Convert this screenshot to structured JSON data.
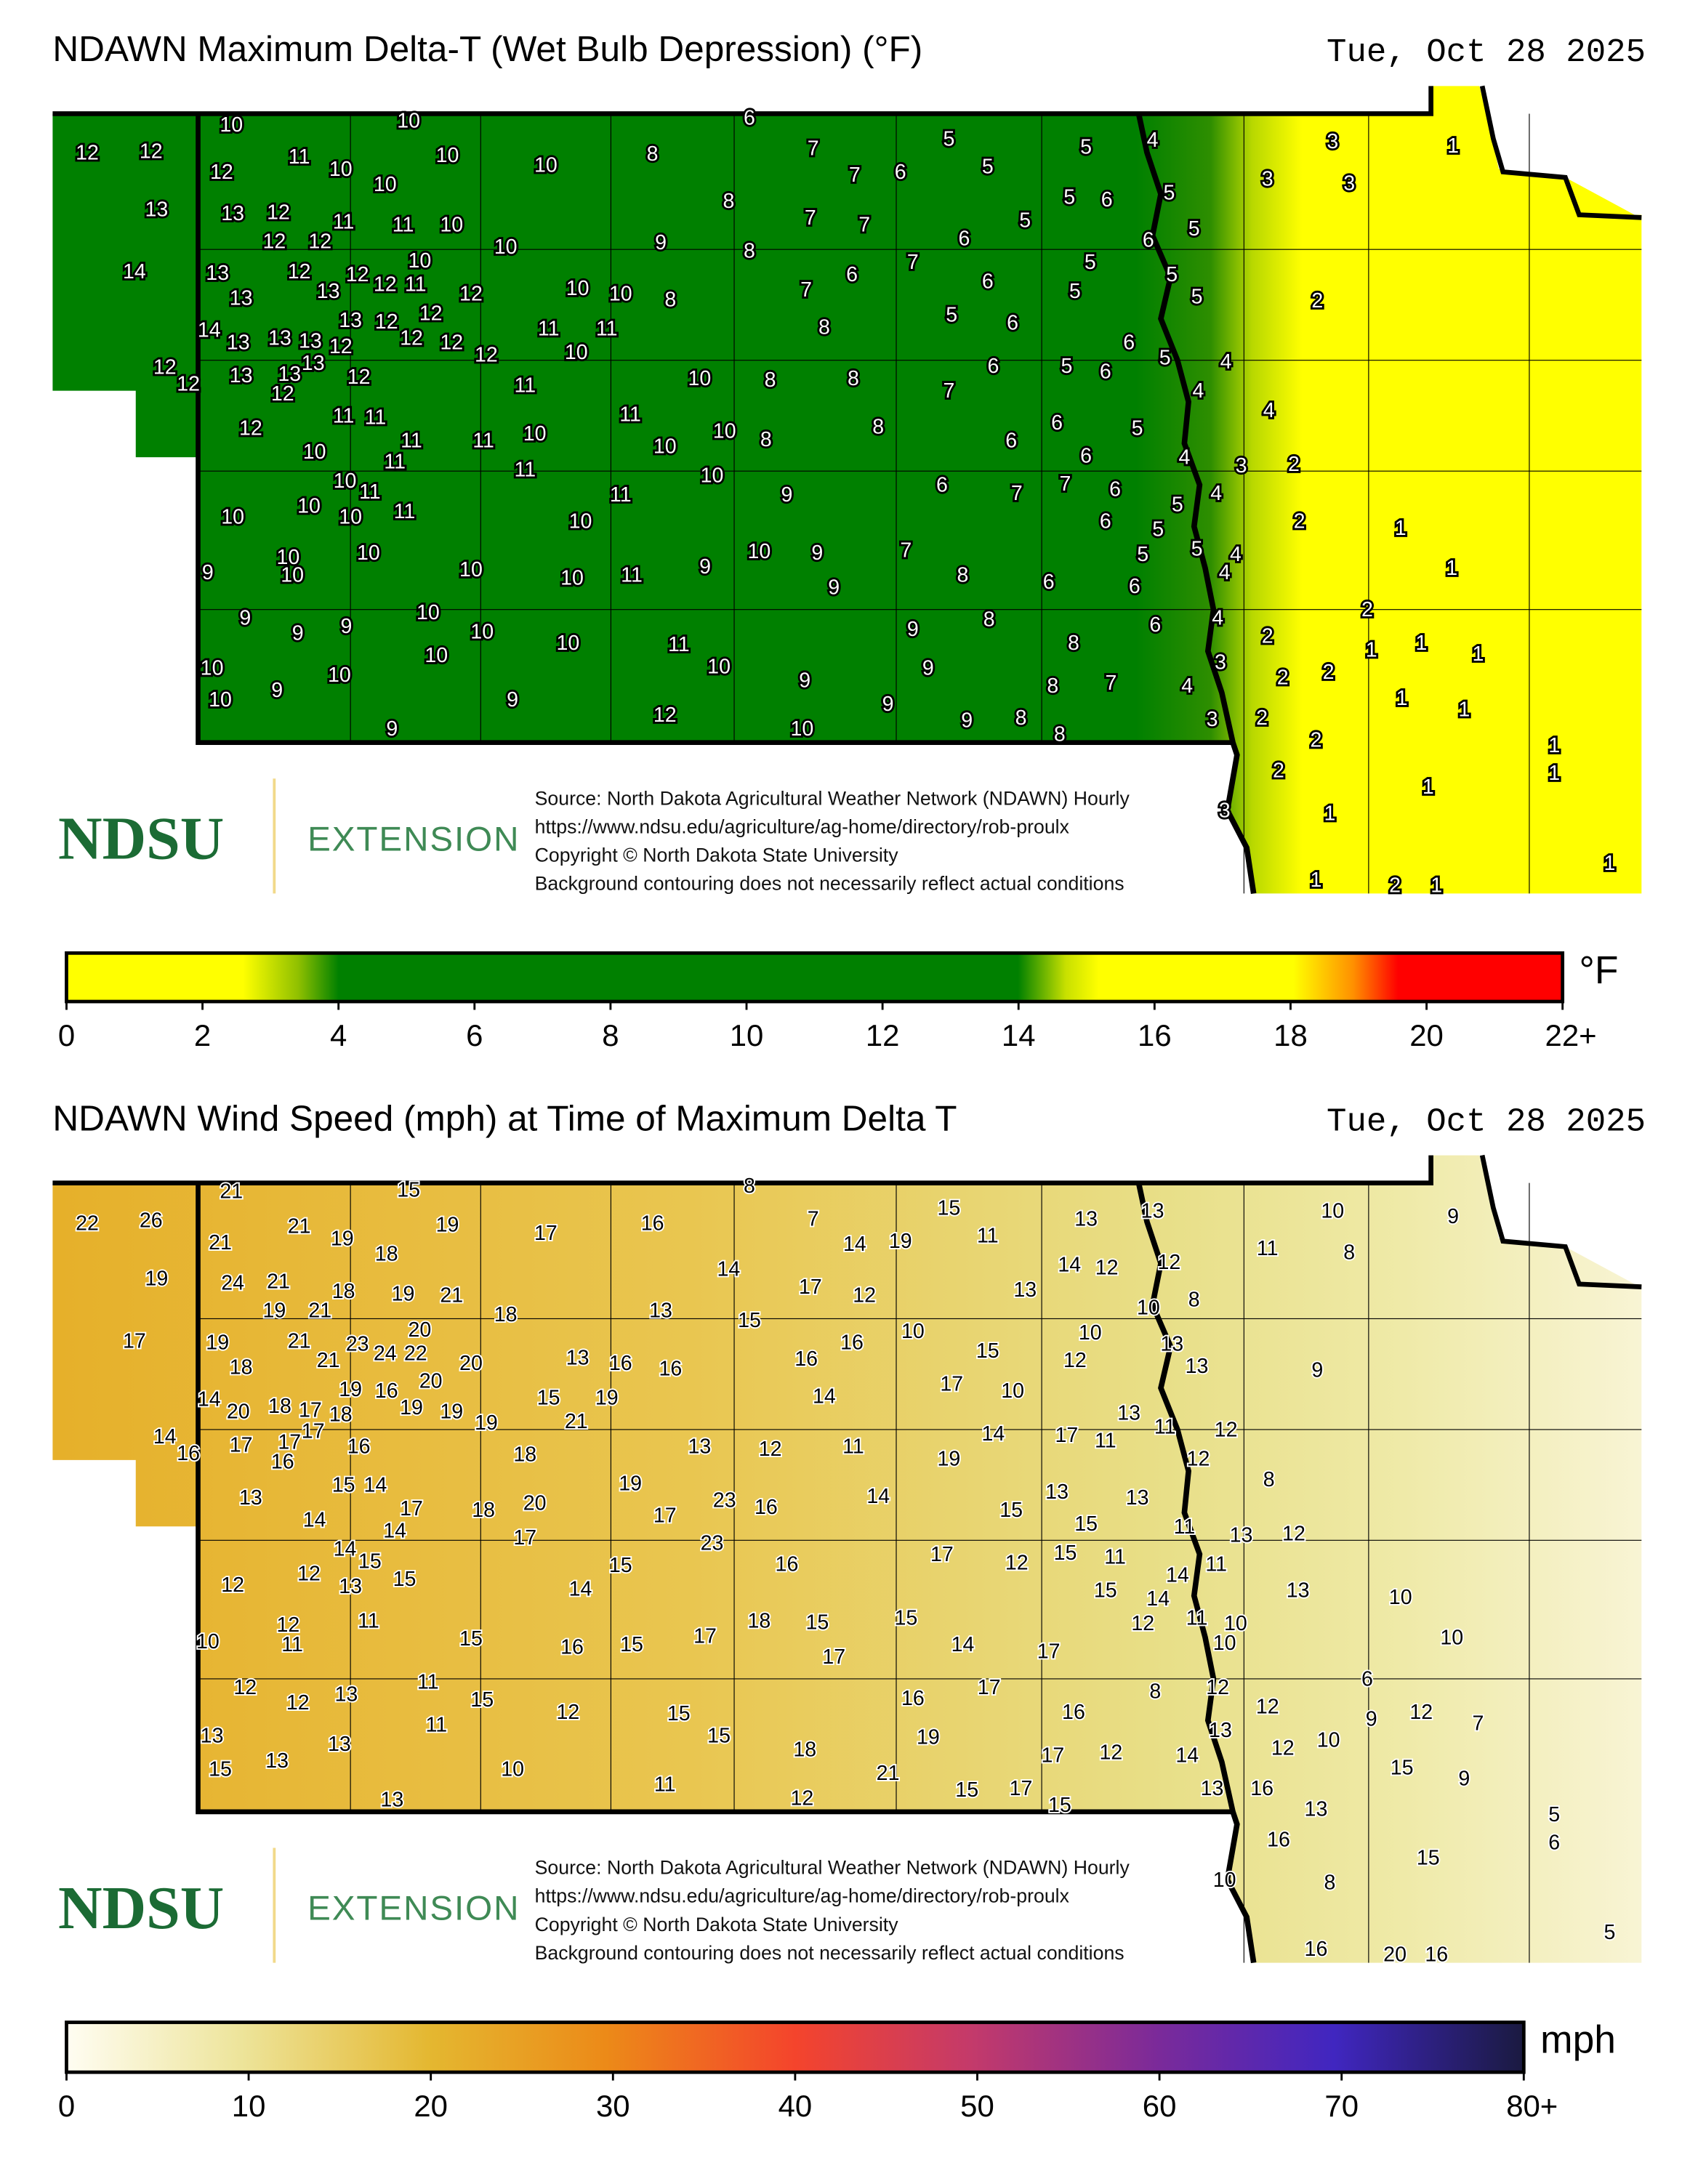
{
  "delta_t_map": {
    "title": "NDAWN Maximum Delta-T (Wet Bulb Depression) (°F)",
    "date": "Tue, Oct 28 2025",
    "colors": {
      "low": "#ffff00",
      "mid": "#008000",
      "high": "#ff0000"
    },
    "station_values": [
      12,
      12,
      10,
      10,
      6,
      11,
      10,
      12,
      10,
      10,
      10,
      8,
      7,
      7,
      6,
      5,
      5,
      5,
      4,
      3,
      1,
      3,
      3,
      13,
      13,
      12,
      11,
      11,
      10,
      8,
      7,
      7,
      5,
      5,
      6,
      5,
      5,
      6,
      10,
      9,
      8,
      12,
      12,
      14,
      13,
      10,
      12,
      12,
      12,
      11,
      13,
      13,
      12,
      12,
      10,
      10,
      8,
      7,
      6,
      7,
      6,
      6,
      5,
      5,
      5,
      5,
      2,
      14,
      13,
      13,
      13,
      12,
      13,
      12,
      12,
      12,
      12,
      11,
      11,
      10,
      8,
      5,
      6,
      6,
      5,
      4,
      12,
      12,
      13,
      13,
      13,
      12,
      12,
      11,
      10,
      8,
      8,
      7,
      6,
      5,
      6,
      4,
      4,
      12,
      11,
      11,
      11,
      11,
      11,
      10,
      11,
      10,
      10,
      8,
      8,
      6,
      6,
      6,
      5,
      4,
      3,
      2,
      10,
      11,
      10,
      11,
      10,
      9,
      6,
      7,
      7,
      6,
      5,
      4,
      10,
      10,
      10,
      11,
      11,
      10,
      6,
      5,
      2,
      1,
      9,
      10,
      10,
      10,
      10,
      10,
      11,
      9,
      10,
      9,
      9,
      7,
      8,
      6,
      6,
      5,
      5,
      4,
      4,
      1,
      9,
      9,
      9,
      10,
      10,
      10,
      10,
      8,
      9,
      8,
      6,
      4,
      2,
      2,
      1,
      1,
      1,
      10,
      10,
      9,
      10,
      9,
      9,
      11,
      10,
      12,
      9,
      10,
      9,
      9,
      9,
      8,
      8,
      7,
      8,
      4,
      3,
      3,
      2,
      2,
      2,
      1,
      1,
      2,
      2,
      1,
      1,
      1,
      3,
      1,
      1,
      2,
      1,
      1
    ],
    "source_lines": [
      "Source: North Dakota Agricultural Weather Network (NDAWN) Hourly",
      "https://www.ndsu.edu/agriculture/ag-home/directory/rob-proulx",
      "Copyright © North Dakota State University",
      "Background contouring does not necessarily reflect actual conditions"
    ],
    "logo": {
      "name": "NDSU",
      "sub": "EXTENSION"
    },
    "legend": {
      "unit": "°F",
      "ticks": [
        "0",
        "2",
        "4",
        "6",
        "8",
        "10",
        "12",
        "14",
        "16",
        "18",
        "20",
        "22+"
      ]
    }
  },
  "wind_map": {
    "title": "NDAWN Wind Speed (mph) at Time of Maximum Delta T",
    "date": "Tue, Oct 28 2025",
    "colors": {
      "low": "#fffdf0",
      "mid": "#e3b52c",
      "high": "#1a1a40"
    },
    "station_values": [
      21,
      15,
      8,
      22,
      26,
      21,
      21,
      19,
      18,
      19,
      17,
      16,
      7,
      14,
      19,
      15,
      11,
      13,
      13,
      10,
      9,
      11,
      8,
      19,
      24,
      21,
      18,
      19,
      21,
      14,
      17,
      12,
      13,
      14,
      12,
      12,
      8,
      10,
      18,
      13,
      15,
      19,
      21,
      17,
      19,
      20,
      21,
      23,
      24,
      22,
      18,
      21,
      20,
      20,
      13,
      16,
      16,
      16,
      16,
      10,
      15,
      10,
      12,
      13,
      13,
      9,
      14,
      20,
      18,
      17,
      18,
      19,
      16,
      19,
      19,
      19,
      15,
      19,
      21,
      14,
      17,
      10,
      13,
      11,
      12,
      14,
      16,
      17,
      17,
      17,
      16,
      16,
      18,
      13,
      12,
      11,
      19,
      14,
      17,
      11,
      12,
      8,
      13,
      15,
      14,
      17,
      14,
      18,
      20,
      19,
      17,
      23,
      16,
      14,
      15,
      13,
      15,
      13,
      11,
      13,
      12,
      14,
      17,
      14,
      15,
      23,
      16,
      17,
      12,
      15,
      11,
      14,
      11,
      12,
      12,
      13,
      15,
      14,
      15,
      15,
      14,
      13,
      10,
      10,
      12,
      11,
      11,
      15,
      16,
      15,
      17,
      18,
      15,
      17,
      15,
      14,
      17,
      12,
      11,
      10,
      10,
      10,
      12,
      12,
      13,
      11,
      11,
      15,
      12,
      16,
      17,
      16,
      8,
      12,
      6,
      12,
      9,
      12,
      7,
      13,
      15,
      13,
      13,
      13,
      10,
      15,
      15,
      11,
      18,
      12,
      19,
      21,
      15,
      17,
      17,
      12,
      15,
      14,
      13,
      13,
      16,
      12,
      10,
      15,
      9,
      13,
      16,
      15,
      5,
      6,
      10,
      8,
      16,
      20,
      16,
      5
    ],
    "source_lines": [
      "Source: North Dakota Agricultural Weather Network (NDAWN) Hourly",
      "https://www.ndsu.edu/agriculture/ag-home/directory/rob-proulx",
      "Copyright © North Dakota State University",
      "Background contouring does not necessarily reflect actual conditions"
    ],
    "logo": {
      "name": "NDSU",
      "sub": "EXTENSION"
    },
    "legend": {
      "unit": "mph",
      "ticks": [
        "0",
        "10",
        "20",
        "30",
        "40",
        "50",
        "60",
        "70",
        "80+"
      ]
    }
  }
}
